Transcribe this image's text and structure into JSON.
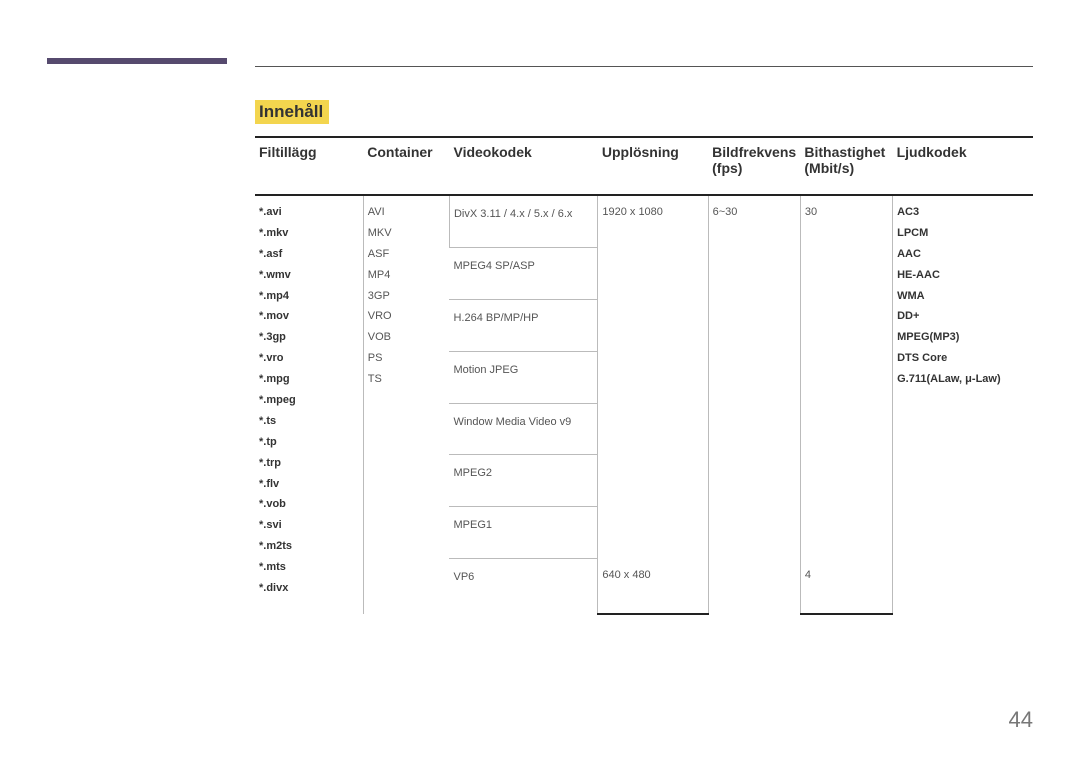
{
  "page": {
    "title": "Innehåll",
    "page_number": "44"
  },
  "headers": {
    "c1": "Filtillägg",
    "c2": "Container",
    "c3": "Videokodek",
    "c4": "Upplösning",
    "c5": "Bildfrekvens (fps)",
    "c6": "Bithastighet (Mbit/s)",
    "c7": "Ljudkodek"
  },
  "col1": [
    "*.avi",
    "*.mkv",
    "*.asf",
    "*.wmv",
    "*.mp4",
    "*.mov",
    "*.3gp",
    "*.vro",
    "*.mpg",
    "*.mpeg",
    "*.ts",
    "*.tp",
    "*.trp",
    "*.flv",
    "*.vob",
    "*.svi",
    "*.m2ts",
    "*.mts",
    "*.divx"
  ],
  "col2": [
    "AVI",
    "MKV",
    "ASF",
    "MP4",
    "3GP",
    "VRO",
    "VOB",
    "PS",
    "TS"
  ],
  "codecs": [
    "DivX 3.11 / 4.x / 5.x / 6.x",
    "MPEG4 SP/ASP",
    "H.264 BP/MP/HP",
    "Motion JPEG",
    "Window Media Video v9",
    "MPEG2",
    "MPEG1",
    "VP6"
  ],
  "res_main": "1920 x 1080",
  "res_vp6": "640 x 480",
  "fps_main": "6~30",
  "bitrate_main": "30",
  "bitrate_vp6": "4",
  "audio": [
    "AC3",
    "LPCM",
    "AAC",
    "HE-AAC",
    "WMA",
    "DD+",
    "MPEG(MP3)",
    "DTS Core",
    "G.711(ALaw, μ-Law)"
  ]
}
